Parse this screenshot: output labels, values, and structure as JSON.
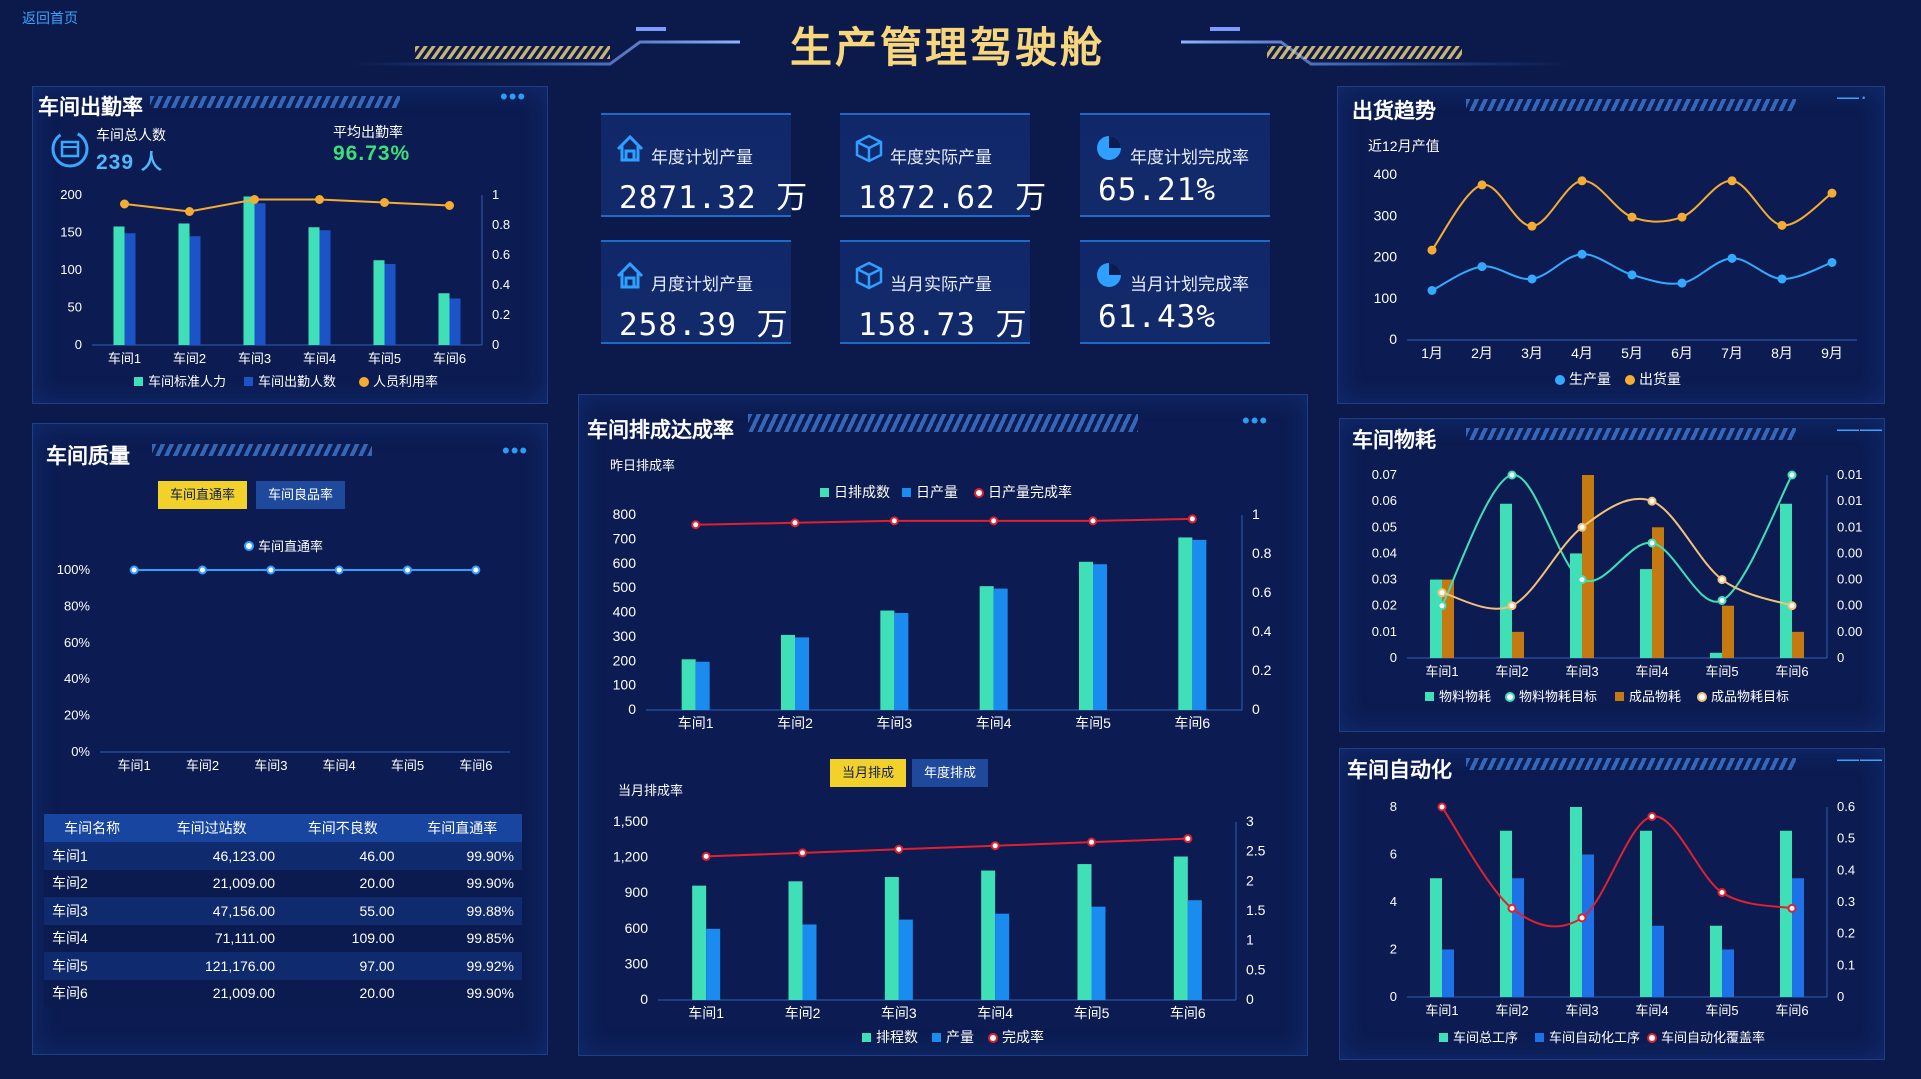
{
  "header": {
    "back_link": "返回首页",
    "title": "生产管理驾驶舱"
  },
  "colors": {
    "teal": "#3fe0b8",
    "blue": "#1a8cf0",
    "darkblue": "#1c54c8",
    "orange": "#f5ac32",
    "red": "#e0202e",
    "brown": "#c47a10",
    "kpi_value": "#ffffff",
    "green": "#3ce079"
  },
  "attendance": {
    "title": "车间出勤率",
    "total_label": "车间总人数",
    "total_value": "239 人",
    "avg_label": "平均出勤率",
    "avg_value": "96.73%",
    "chart_data": {
      "type": "bar",
      "categories": [
        "车间1",
        "车间2",
        "车间3",
        "车间4",
        "车间5",
        "车间6"
      ],
      "series": [
        {
          "name": "车间标准人力",
          "values": [
            158,
            162,
            198,
            157,
            113,
            69
          ]
        },
        {
          "name": "车间出勤人数",
          "values": [
            149,
            145,
            189,
            153,
            108,
            62
          ]
        },
        {
          "name": "人员利用率",
          "values": [
            0.94,
            0.89,
            0.97,
            0.97,
            0.95,
            0.93
          ]
        }
      ],
      "yticks": [
        "200",
        "150",
        "100",
        "50",
        "0"
      ],
      "y2ticks": [
        "1",
        "0.8",
        "0.6",
        "0.4",
        "0.2",
        "0"
      ],
      "ylim": [
        0,
        200
      ],
      "y2lim": [
        0,
        1
      ]
    }
  },
  "kpis": [
    {
      "label": "年度计划产量",
      "value": "2871.32 万",
      "icon": "home-icon"
    },
    {
      "label": "年度实际产量",
      "value": "1872.62 万",
      "icon": "box-icon"
    },
    {
      "label": "年度计划完成率",
      "value": "65.21%",
      "icon": "pie-icon"
    },
    {
      "label": "月度计划产量",
      "value": "258.39 万",
      "icon": "home-icon"
    },
    {
      "label": "当月实际产量",
      "value": "158.73 万",
      "icon": "box-icon"
    },
    {
      "label": "当月计划完成率",
      "value": "61.43%",
      "icon": "pie-icon"
    }
  ],
  "shipping": {
    "title": "出货趋势",
    "subtitle": "近12月产值",
    "chart_data": {
      "type": "line",
      "categories": [
        "1月",
        "2月",
        "3月",
        "4月",
        "5月",
        "6月",
        "7月",
        "8月",
        "9月"
      ],
      "series": [
        {
          "name": "生产量",
          "values": [
            120,
            178,
            148,
            208,
            158,
            138,
            198,
            148,
            188
          ]
        },
        {
          "name": "出货量",
          "values": [
            218,
            376,
            276,
            386,
            298,
            298,
            386,
            278,
            356
          ]
        }
      ],
      "yticks": [
        "400",
        "300",
        "200",
        "100",
        "0"
      ],
      "ylim": [
        0,
        400
      ]
    }
  },
  "quality": {
    "title": "车间质量",
    "tabs": [
      "车间直通率",
      "车间良品率"
    ],
    "legend": "车间直通率",
    "chart_data": {
      "type": "line",
      "categories": [
        "车间1",
        "车间2",
        "车间3",
        "车间4",
        "车间5",
        "车间6"
      ],
      "series": [
        {
          "name": "车间直通率",
          "values": [
            100,
            100,
            100,
            100,
            100,
            100
          ]
        }
      ],
      "yticks": [
        "100%",
        "80%",
        "60%",
        "40%",
        "20%",
        "0%"
      ],
      "ylim": [
        0,
        100
      ]
    },
    "table": {
      "headers": [
        "车间名称",
        "车间过站数",
        "车间不良数",
        "车间直通率"
      ],
      "rows": [
        [
          "车间1",
          "46,123.00",
          "46.00",
          "99.90%"
        ],
        [
          "车间2",
          "21,009.00",
          "20.00",
          "99.90%"
        ],
        [
          "车间3",
          "47,156.00",
          "55.00",
          "99.88%"
        ],
        [
          "车间4",
          "71,111.00",
          "109.00",
          "99.85%"
        ],
        [
          "车间5",
          "121,176.00",
          "97.00",
          "99.92%"
        ],
        [
          "车间6",
          "21,009.00",
          "20.00",
          "99.90%"
        ]
      ]
    }
  },
  "schedule": {
    "title": "车间排成达成率",
    "daily_label": "昨日排成率",
    "daily_chart": {
      "type": "bar",
      "categories": [
        "车间1",
        "车间2",
        "车间3",
        "车间4",
        "车间5",
        "车间6"
      ],
      "series": [
        {
          "name": "日排成数",
          "values": [
            208,
            308,
            408,
            508,
            608,
            708
          ]
        },
        {
          "name": "日产量",
          "values": [
            198,
            298,
            398,
            498,
            598,
            698
          ]
        },
        {
          "name": "日产量完成率",
          "values": [
            0.95,
            0.96,
            0.97,
            0.97,
            0.97,
            0.98
          ]
        }
      ],
      "yticks": [
        "800",
        "700",
        "600",
        "500",
        "400",
        "300",
        "200",
        "100",
        "0"
      ],
      "y2ticks": [
        "1",
        "0.8",
        "0.6",
        "0.4",
        "0.2",
        "0"
      ],
      "ylim": [
        0,
        800
      ],
      "y2lim": [
        0,
        1
      ]
    },
    "tabs": [
      "当月排成",
      "年度排成"
    ],
    "monthly_label": "当月排成率",
    "monthly_chart": {
      "type": "bar",
      "categories": [
        "车间1",
        "车间2",
        "车间3",
        "车间4",
        "车间5",
        "车间6"
      ],
      "series": [
        {
          "name": "排程数",
          "values": [
            1060,
            1100,
            1140,
            1200,
            1260,
            1330
          ]
        },
        {
          "name": "产量",
          "values": [
            660,
            700,
            745,
            800,
            865,
            925
          ]
        },
        {
          "name": "完成率",
          "values": [
            2.42,
            2.48,
            2.54,
            2.6,
            2.66,
            2.72
          ]
        }
      ],
      "yticks": [
        "1,500",
        "1,200",
        "900",
        "600",
        "300",
        "0"
      ],
      "y2ticks": [
        "3",
        "2.5",
        "2",
        "1.5",
        "1",
        "0.5",
        "0"
      ],
      "ylim": [
        0,
        1650
      ],
      "y2lim": [
        0,
        3
      ]
    }
  },
  "material": {
    "title": "车间物耗",
    "chart_data": {
      "type": "bar",
      "categories": [
        "车间1",
        "车间2",
        "车间3",
        "车间4",
        "车间5",
        "车间6"
      ],
      "series": [
        {
          "name": "物料物耗",
          "values": [
            0.03,
            0.059,
            0.04,
            0.034,
            0.002,
            0.059
          ]
        },
        {
          "name": "物料物耗目标",
          "values": [
            0.02,
            0.07,
            0.03,
            0.044,
            0.022,
            0.07
          ]
        },
        {
          "name": "成品物耗",
          "values": [
            0.03,
            0.01,
            0.07,
            0.05,
            0.02,
            0.01
          ]
        },
        {
          "name": "成品物耗目标",
          "values": [
            0.025,
            0.02,
            0.05,
            0.06,
            0.03,
            0.02
          ]
        }
      ],
      "yticks": [
        "0.07",
        "0.06",
        "0.05",
        "0.04",
        "0.03",
        "0.02",
        "0.01",
        "0"
      ],
      "y2ticks": [
        "0.01",
        "0.01",
        "0.01",
        "0.00",
        "0.00",
        "0.00",
        "0.00",
        "0"
      ],
      "ylim": [
        0,
        0.07
      ]
    }
  },
  "automation": {
    "title": "车间自动化",
    "chart_data": {
      "type": "bar",
      "categories": [
        "车间1",
        "车间2",
        "车间3",
        "车间4",
        "车间5",
        "车间6"
      ],
      "series": [
        {
          "name": "车间总工序",
          "values": [
            5,
            7,
            8,
            7,
            3,
            7
          ]
        },
        {
          "name": "车间自动化工序",
          "values": [
            2,
            5,
            6,
            3,
            2,
            5
          ]
        },
        {
          "name": "车间自动化覆盖率",
          "values": [
            0.6,
            0.28,
            0.25,
            0.57,
            0.33,
            0.28
          ]
        }
      ],
      "yticks": [
        "8",
        "6",
        "4",
        "2",
        "0"
      ],
      "y2ticks": [
        "0.6",
        "0.5",
        "0.4",
        "0.3",
        "0.2",
        "0.1",
        "0"
      ],
      "ylim": [
        0,
        8
      ],
      "y2lim": [
        0,
        0.6
      ]
    }
  }
}
